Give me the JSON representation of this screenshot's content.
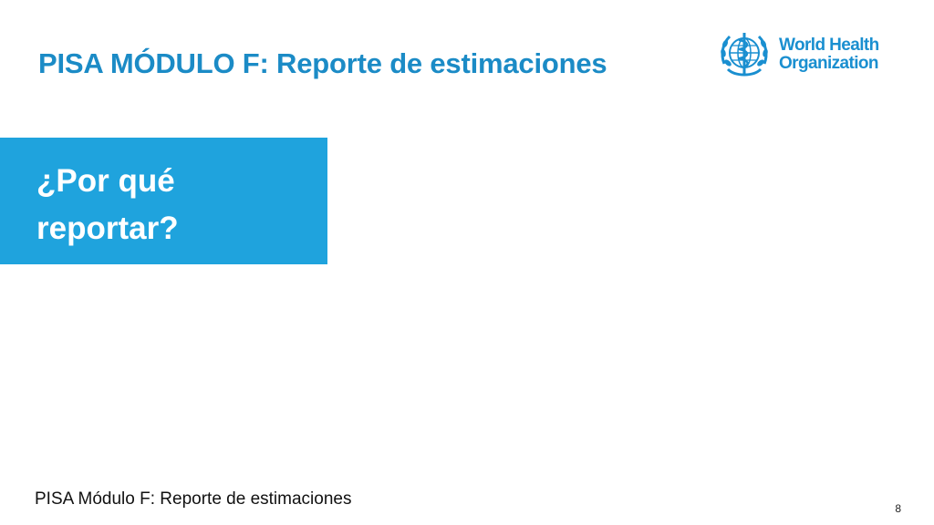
{
  "slide": {
    "title": "PISA MÓDULO F: Reporte de estimaciones",
    "section_heading": "¿Por qué reportar?",
    "footer": "PISA Módulo F: Reporte de estimaciones",
    "page_number": "8"
  },
  "logo": {
    "line1": "World Health",
    "line2": "Organization",
    "icon": "who-emblem-icon",
    "color": "#1a8fd0"
  },
  "colors": {
    "title": "#1b8bc6",
    "section_box": "#1fa3dd",
    "background": "#ffffff"
  }
}
